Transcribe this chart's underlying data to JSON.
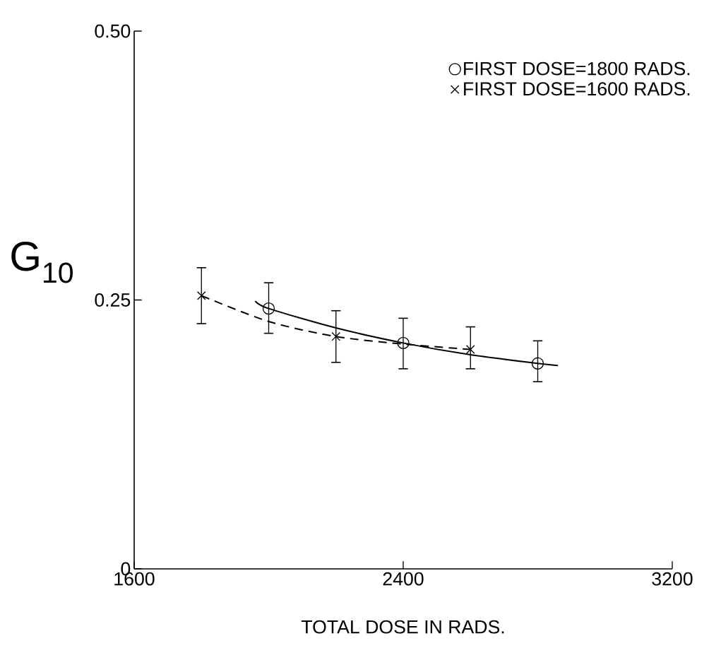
{
  "chart_data": {
    "type": "scatter",
    "xlabel": "TOTAL DOSE IN RADS.",
    "ylabel": "G$_{10}$",
    "xlim": [
      1600,
      3200
    ],
    "ylim": [
      0,
      0.5
    ],
    "xticks": [
      1600,
      2400,
      3200
    ],
    "yticks": [
      0,
      0.25,
      {
        "value": 0.5,
        "label": "0.50"
      }
    ],
    "legend": "top right",
    "series": [
      {
        "name": "FIRST DOSE=1800 RADS.",
        "color": "#000000",
        "marker": "circle",
        "x": [
          2000,
          2400,
          2800
        ],
        "values": [
          0.242,
          0.21,
          0.191
        ],
        "errors": [
          [
            0.219,
            0.266
          ],
          [
            0.186,
            0.233
          ],
          [
            0.174,
            0.212
          ]
        ]
      },
      {
        "name": "FIRST DOSE=1600 RADS.",
        "color": "#000000",
        "marker": "cross",
        "x": [
          1800,
          2200,
          2600
        ],
        "values": [
          0.254,
          0.216,
          0.204
        ],
        "errors": [
          [
            0.228,
            0.28
          ],
          [
            0.192,
            0.24
          ],
          [
            0.186,
            0.225
          ]
        ]
      },
      {
        "type": "line",
        "color": "#000000",
        "line_style": "solid",
        "x": [
          1960,
          2000,
          2200,
          2400,
          2600,
          2800,
          2860
        ],
        "values": [
          0.249,
          0.242,
          0.224,
          0.21,
          0.199,
          0.191,
          0.189
        ]
      },
      {
        "type": "line",
        "color": "#000000",
        "line_style": "dashed",
        "x": [
          1800,
          2000,
          2200,
          2400,
          2600
        ],
        "values": [
          0.254,
          0.23,
          0.216,
          0.209,
          0.204
        ]
      }
    ]
  }
}
